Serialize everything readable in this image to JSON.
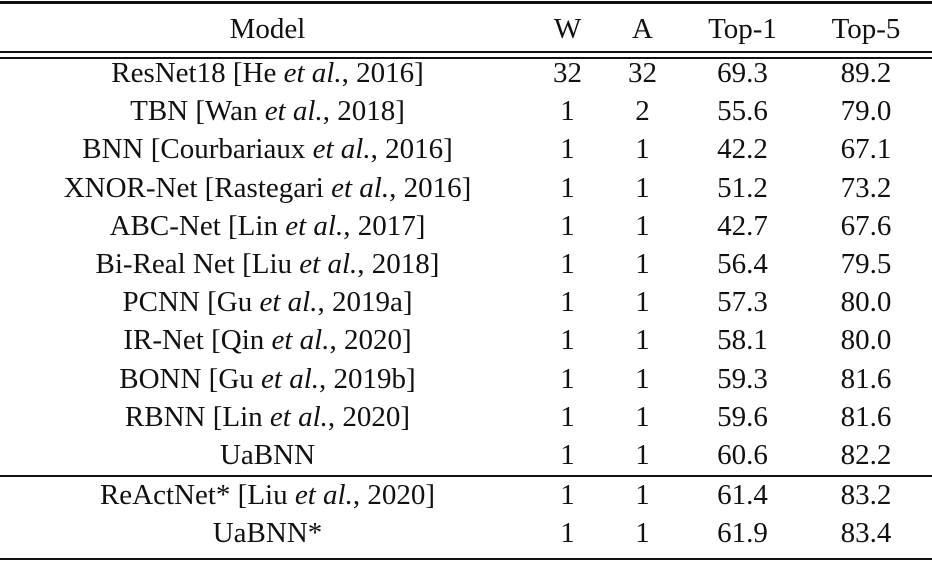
{
  "table": {
    "header": [
      "Model",
      "W",
      "A",
      "Top-1",
      "Top-5"
    ],
    "sections": [
      [
        {
          "model": [
            "ResNet18 [He ",
            "et al.",
            ", 2016]"
          ],
          "cells": [
            "32",
            "32",
            "69.3",
            "89.2"
          ]
        },
        {
          "model": [
            "TBN [Wan ",
            "et al.",
            ", 2018]"
          ],
          "cells": [
            "1",
            "2",
            "55.6",
            "79.0"
          ]
        },
        {
          "model": [
            "BNN [Courbariaux ",
            "et al.",
            ", 2016]"
          ],
          "cells": [
            "1",
            "1",
            "42.2",
            "67.1"
          ]
        },
        {
          "model": [
            "XNOR-Net [Rastegari ",
            "et al.",
            ", 2016]"
          ],
          "cells": [
            "1",
            "1",
            "51.2",
            "73.2"
          ]
        },
        {
          "model": [
            "ABC-Net [Lin ",
            "et al.",
            ", 2017]"
          ],
          "cells": [
            "1",
            "1",
            "42.7",
            "67.6"
          ]
        },
        {
          "model": [
            "Bi-Real Net [Liu ",
            "et al.",
            ", 2018]"
          ],
          "cells": [
            "1",
            "1",
            "56.4",
            "79.5"
          ]
        },
        {
          "model": [
            "PCNN [Gu ",
            "et al.",
            ", 2019a]"
          ],
          "cells": [
            "1",
            "1",
            "57.3",
            "80.0"
          ]
        },
        {
          "model": [
            "IR-Net [Qin ",
            "et al.",
            ", 2020]"
          ],
          "cells": [
            "1",
            "1",
            "58.1",
            "80.0"
          ]
        },
        {
          "model": [
            "BONN [Gu ",
            "et al.",
            ", 2019b]"
          ],
          "cells": [
            "1",
            "1",
            "59.3",
            "81.6"
          ]
        },
        {
          "model": [
            "RBNN [Lin ",
            "et al.",
            ", 2020]"
          ],
          "cells": [
            "1",
            "1",
            "59.6",
            "81.6"
          ]
        },
        {
          "model": [
            "UaBNN"
          ],
          "cells": [
            "1",
            "1",
            "60.6",
            "82.2"
          ]
        }
      ],
      [
        {
          "model": [
            "ReActNet* [Liu ",
            "et al.",
            ", 2020]"
          ],
          "cells": [
            "1",
            "1",
            "61.4",
            "83.2"
          ]
        },
        {
          "model": [
            "UaBNN*"
          ],
          "cells": [
            "1",
            "1",
            "61.9",
            "83.4"
          ]
        }
      ]
    ]
  }
}
